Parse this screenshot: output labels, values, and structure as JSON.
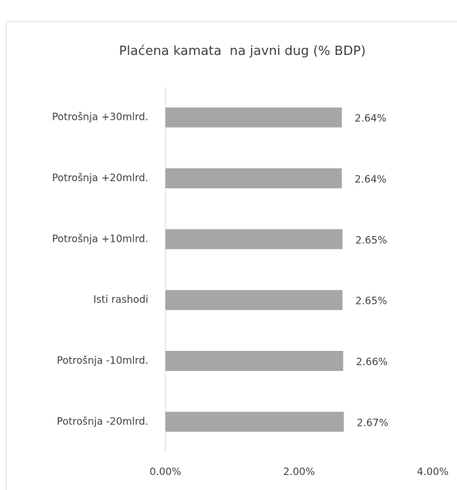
{
  "chart_data": {
    "type": "bar",
    "orientation": "horizontal",
    "title": "Plaćena kamata  na javni dug (% BDP)",
    "categories": [
      "Potrošnja +30mlrd.",
      "Potrošnja +20mlrd.",
      "Potrošnja +10mlrd.",
      "Isti rashodi",
      "Potrošnja -10mlrd.",
      "Potrošnja -20mlrd."
    ],
    "values": [
      2.64,
      2.64,
      2.65,
      2.65,
      2.66,
      2.67
    ],
    "value_labels": [
      "2.64%",
      "2.64%",
      "2.65%",
      "2.65%",
      "2.66%",
      "2.67%"
    ],
    "color": "#a6a6a6",
    "xlim": [
      0,
      4
    ],
    "xticks": [
      {
        "value": 0,
        "label": "0.00%"
      },
      {
        "value": 2,
        "label": "2.00%"
      },
      {
        "value": 4,
        "label": "4.00%"
      }
    ],
    "grid": false
  }
}
